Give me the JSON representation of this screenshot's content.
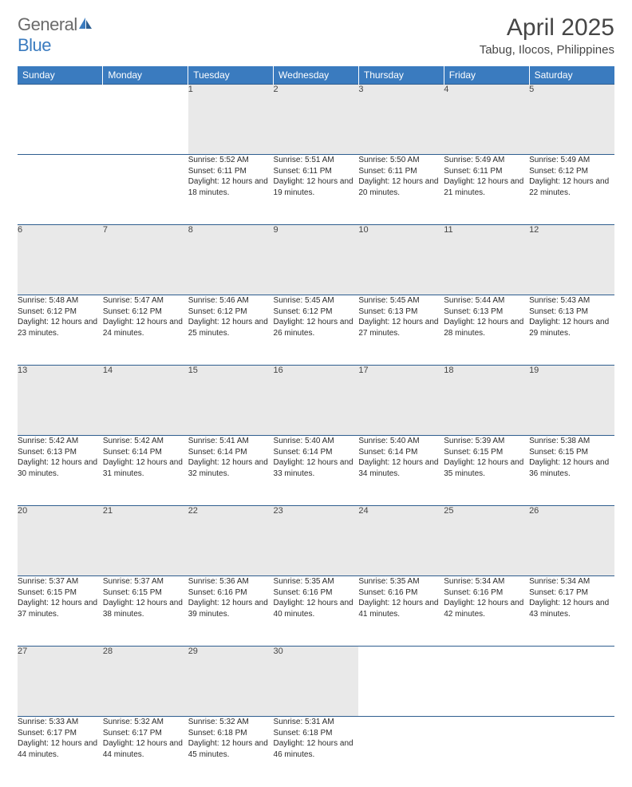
{
  "logo": {
    "word1": "General",
    "word2": "Blue"
  },
  "title": "April 2025",
  "location": "Tabug, Ilocos, Philippines",
  "colors": {
    "header_bg": "#3a7bbf",
    "header_text": "#ffffff",
    "daynum_bg": "#e9e9e9",
    "rule": "#2f5e8f",
    "body_text": "#2b2b2b",
    "title_text": "#464646",
    "logo_gray": "#6a6a6a",
    "logo_blue": "#3a7bbf"
  },
  "days_of_week": [
    "Sunday",
    "Monday",
    "Tuesday",
    "Wednesday",
    "Thursday",
    "Friday",
    "Saturday"
  ],
  "weeks": [
    [
      null,
      null,
      {
        "n": "1",
        "sr": "5:52 AM",
        "ss": "6:11 PM",
        "dl": "12 hours and 18 minutes."
      },
      {
        "n": "2",
        "sr": "5:51 AM",
        "ss": "6:11 PM",
        "dl": "12 hours and 19 minutes."
      },
      {
        "n": "3",
        "sr": "5:50 AM",
        "ss": "6:11 PM",
        "dl": "12 hours and 20 minutes."
      },
      {
        "n": "4",
        "sr": "5:49 AM",
        "ss": "6:11 PM",
        "dl": "12 hours and 21 minutes."
      },
      {
        "n": "5",
        "sr": "5:49 AM",
        "ss": "6:12 PM",
        "dl": "12 hours and 22 minutes."
      }
    ],
    [
      {
        "n": "6",
        "sr": "5:48 AM",
        "ss": "6:12 PM",
        "dl": "12 hours and 23 minutes."
      },
      {
        "n": "7",
        "sr": "5:47 AM",
        "ss": "6:12 PM",
        "dl": "12 hours and 24 minutes."
      },
      {
        "n": "8",
        "sr": "5:46 AM",
        "ss": "6:12 PM",
        "dl": "12 hours and 25 minutes."
      },
      {
        "n": "9",
        "sr": "5:45 AM",
        "ss": "6:12 PM",
        "dl": "12 hours and 26 minutes."
      },
      {
        "n": "10",
        "sr": "5:45 AM",
        "ss": "6:13 PM",
        "dl": "12 hours and 27 minutes."
      },
      {
        "n": "11",
        "sr": "5:44 AM",
        "ss": "6:13 PM",
        "dl": "12 hours and 28 minutes."
      },
      {
        "n": "12",
        "sr": "5:43 AM",
        "ss": "6:13 PM",
        "dl": "12 hours and 29 minutes."
      }
    ],
    [
      {
        "n": "13",
        "sr": "5:42 AM",
        "ss": "6:13 PM",
        "dl": "12 hours and 30 minutes."
      },
      {
        "n": "14",
        "sr": "5:42 AM",
        "ss": "6:14 PM",
        "dl": "12 hours and 31 minutes."
      },
      {
        "n": "15",
        "sr": "5:41 AM",
        "ss": "6:14 PM",
        "dl": "12 hours and 32 minutes."
      },
      {
        "n": "16",
        "sr": "5:40 AM",
        "ss": "6:14 PM",
        "dl": "12 hours and 33 minutes."
      },
      {
        "n": "17",
        "sr": "5:40 AM",
        "ss": "6:14 PM",
        "dl": "12 hours and 34 minutes."
      },
      {
        "n": "18",
        "sr": "5:39 AM",
        "ss": "6:15 PM",
        "dl": "12 hours and 35 minutes."
      },
      {
        "n": "19",
        "sr": "5:38 AM",
        "ss": "6:15 PM",
        "dl": "12 hours and 36 minutes."
      }
    ],
    [
      {
        "n": "20",
        "sr": "5:37 AM",
        "ss": "6:15 PM",
        "dl": "12 hours and 37 minutes."
      },
      {
        "n": "21",
        "sr": "5:37 AM",
        "ss": "6:15 PM",
        "dl": "12 hours and 38 minutes."
      },
      {
        "n": "22",
        "sr": "5:36 AM",
        "ss": "6:16 PM",
        "dl": "12 hours and 39 minutes."
      },
      {
        "n": "23",
        "sr": "5:35 AM",
        "ss": "6:16 PM",
        "dl": "12 hours and 40 minutes."
      },
      {
        "n": "24",
        "sr": "5:35 AM",
        "ss": "6:16 PM",
        "dl": "12 hours and 41 minutes."
      },
      {
        "n": "25",
        "sr": "5:34 AM",
        "ss": "6:16 PM",
        "dl": "12 hours and 42 minutes."
      },
      {
        "n": "26",
        "sr": "5:34 AM",
        "ss": "6:17 PM",
        "dl": "12 hours and 43 minutes."
      }
    ],
    [
      {
        "n": "27",
        "sr": "5:33 AM",
        "ss": "6:17 PM",
        "dl": "12 hours and 44 minutes."
      },
      {
        "n": "28",
        "sr": "5:32 AM",
        "ss": "6:17 PM",
        "dl": "12 hours and 44 minutes."
      },
      {
        "n": "29",
        "sr": "5:32 AM",
        "ss": "6:18 PM",
        "dl": "12 hours and 45 minutes."
      },
      {
        "n": "30",
        "sr": "5:31 AM",
        "ss": "6:18 PM",
        "dl": "12 hours and 46 minutes."
      },
      null,
      null,
      null
    ]
  ],
  "labels": {
    "sunrise": "Sunrise:",
    "sunset": "Sunset:",
    "daylight": "Daylight:"
  }
}
